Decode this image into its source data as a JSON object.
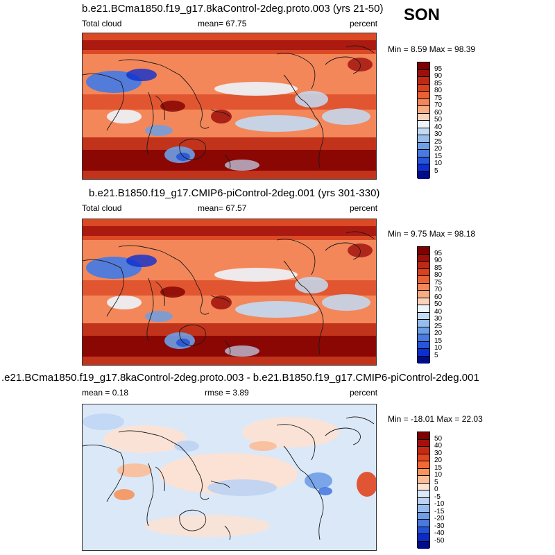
{
  "season": "SON",
  "panels": [
    {
      "title": "b.e21.BCma1850.f19_g17.8kaControl-2deg.proto.003 (yrs 21-50)",
      "left_label": "Total cloud",
      "mid_label": "mean=  67.75",
      "right_label": "percent",
      "minmax": "Min =   8.59 Max =  98.39",
      "type": "abs",
      "levels": [
        "95",
        "90",
        "85",
        "80",
        "75",
        "70",
        "60",
        "50",
        "40",
        "30",
        "25",
        "20",
        "15",
        "10",
        "5"
      ],
      "colors": [
        "#800000",
        "#9e0f0b",
        "#bd2a15",
        "#d8421f",
        "#ea6234",
        "#f3875a",
        "#f7ac84",
        "#fbd2bb",
        "#edf4fa",
        "#c2daf3",
        "#97bdec",
        "#6d9fe4",
        "#4a7ae0",
        "#2756d8",
        "#0c2fcf",
        "#000d8a"
      ]
    },
    {
      "title": "b.e21.B1850.f19_g17.CMIP6-piControl-2deg.001 (yrs 301-330)",
      "left_label": "Total cloud",
      "mid_label": "mean=  67.57",
      "right_label": "percent",
      "minmax": "Min =   9.75 Max =  98.18",
      "type": "abs",
      "levels": [
        "95",
        "90",
        "85",
        "80",
        "75",
        "70",
        "60",
        "50",
        "40",
        "30",
        "25",
        "20",
        "15",
        "10",
        "5"
      ],
      "colors": [
        "#800000",
        "#9e0f0b",
        "#bd2a15",
        "#d8421f",
        "#ea6234",
        "#f3875a",
        "#f7ac84",
        "#fbd2bb",
        "#edf4fa",
        "#c2daf3",
        "#97bdec",
        "#6d9fe4",
        "#4a7ae0",
        "#2756d8",
        "#0c2fcf",
        "#000d8a"
      ]
    },
    {
      "title": ".e21.BCma1850.f19_g17.8kaControl-2deg.proto.003 - b.e21.B1850.f19_g17.CMIP6-piControl-2deg.001",
      "left_label": "mean =   0.18",
      "mid_label": "rmse =   3.89",
      "right_label": "percent",
      "minmax": "Min = -18.01 Max =  22.03",
      "type": "diff",
      "levels": [
        "50",
        "40",
        "30",
        "20",
        "15",
        "10",
        "5",
        "0",
        "-5",
        "-10",
        "-15",
        "-20",
        "-30",
        "-40",
        "-50"
      ],
      "colors": [
        "#800000",
        "#a60f0b",
        "#c62a15",
        "#e0461f",
        "#f06a34",
        "#f7935c",
        "#fbbd98",
        "#fde2d2",
        "#dbe8f8",
        "#bcd3f3",
        "#97bbee",
        "#6f9de7",
        "#4a7ae0",
        "#2352d6",
        "#0a2bc8",
        "#000d8a"
      ]
    }
  ]
}
